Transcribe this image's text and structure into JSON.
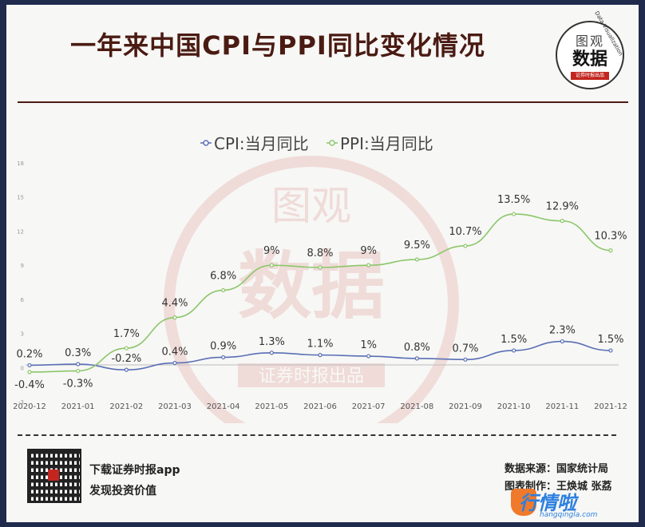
{
  "title": "一年来中国CPI与PPI同比变化情况",
  "logo": {
    "line1": "图观",
    "line2": "数据",
    "line3": "证券时报出品",
    "arc_text": "Data Visualization"
  },
  "watermark": {
    "line1": "图观",
    "line2": "数据",
    "line3": "证券时报出品"
  },
  "chart_data": {
    "type": "line",
    "categories": [
      "2020-12",
      "2021-01",
      "2021-02",
      "2021-03",
      "2021-04",
      "2021-05",
      "2021-06",
      "2021-07",
      "2021-08",
      "2021-09",
      "2021-10",
      "2021-11",
      "2021-12"
    ],
    "series": [
      {
        "name": "CPI:当月同比",
        "color": "#5a6fb5",
        "values": [
          0.2,
          0.3,
          -0.2,
          0.4,
          0.9,
          1.3,
          1.1,
          1,
          0.8,
          0.7,
          1.5,
          2.3,
          1.5
        ],
        "labels": [
          "0.2%",
          "0.3%",
          "-0.2%",
          "0.4%",
          "0.9%",
          "1.3%",
          "1.1%",
          "1%",
          "0.8%",
          "0.7%",
          "1.5%",
          "2.3%",
          "1.5%"
        ]
      },
      {
        "name": "PPI:当月同比",
        "color": "#8cc66a",
        "values": [
          -0.4,
          -0.3,
          1.7,
          4.4,
          6.8,
          9,
          8.8,
          9,
          9.5,
          10.7,
          13.5,
          12.9,
          10.3
        ],
        "labels": [
          "-0.4%",
          "-0.3%",
          "1.7%",
          "4.4%",
          "6.8%",
          "9%",
          "8.8%",
          "9%",
          "9.5%",
          "10.7%",
          "13.5%",
          "12.9%",
          "10.3%"
        ]
      }
    ],
    "yticks": [
      "-3",
      "0",
      "3",
      "6",
      "9",
      "12",
      "15",
      "18"
    ],
    "ylim": [
      -3,
      18
    ],
    "legend_position": "top-center",
    "grid": false
  },
  "footer": {
    "line1": "下载证券时报app",
    "line2": "发现投资价值",
    "source": "数据来源：国家统计局",
    "author": "图表制作：王焕城 张荔"
  },
  "brand": {
    "name": "行情啦",
    "url": "hangqingla.com"
  }
}
